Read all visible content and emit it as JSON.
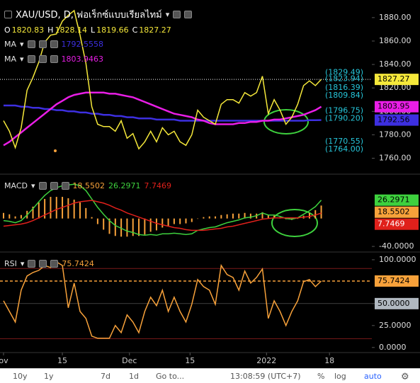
{
  "x_axis": {
    "xlim": [
      -0.6,
      62.6
    ],
    "xticks": [
      {
        "value": 0,
        "label": "ov"
      },
      {
        "value": 10,
        "label": "15"
      },
      {
        "value": 21.4,
        "label": "Dec"
      },
      {
        "value": 31.7,
        "label": "15"
      },
      {
        "value": 44.7,
        "label": "2022"
      },
      {
        "value": 55.4,
        "label": "18"
      }
    ]
  },
  "chart_data": [
    {
      "type": "line",
      "title": "XAU/USD, D, ฟอเร็กซ์แบบเรียลไทม์",
      "ohlc": [
        {
          "label": "O",
          "value": 1820.83
        },
        {
          "label": "H",
          "value": 1828.14
        },
        {
          "label": "L",
          "value": 1819.66
        },
        {
          "label": "C",
          "value": 1827.27
        }
      ],
      "ylim": [
        1747,
        1892
      ],
      "yticks": [
        {
          "value": 1760,
          "label": "1760.00"
        },
        {
          "value": 1780,
          "label": "1780.00"
        },
        {
          "value": 1800,
          "label": "1800.00"
        },
        {
          "value": 1820,
          "label": "1820.00"
        },
        {
          "value": 1840,
          "label": "1840.00"
        },
        {
          "value": 1860,
          "label": "1860.00"
        },
        {
          "value": 1880,
          "label": "1880.00"
        }
      ],
      "levels": [
        {
          "value": 1829.49,
          "label": "(1829.49)"
        },
        {
          "value": 1823.94,
          "label": "(1823.94)"
        },
        {
          "value": 1816.39,
          "label": "(1816.39)"
        },
        {
          "value": 1809.84,
          "label": "(1809.84)"
        },
        {
          "value": 1796.75,
          "label": "(1796.75)"
        },
        {
          "value": 1790.2,
          "label": "(1790.20)"
        },
        {
          "value": 1770.55,
          "label": "(1770.55)"
        },
        {
          "value": 1764.0,
          "label": "(1764.00)"
        }
      ],
      "level_color": "#26c6da",
      "series": [
        {
          "name": "MA",
          "color": "#3d2fe0",
          "last_label": "1792.56",
          "values": [
            1805,
            1805,
            1805,
            1804,
            1804,
            1803,
            1803,
            1802,
            1802,
            1801,
            1801,
            1800,
            1800,
            1799,
            1799,
            1798,
            1798,
            1797,
            1797,
            1796,
            1796,
            1795,
            1795,
            1794,
            1794,
            1794,
            1793,
            1793,
            1793,
            1793,
            1792,
            1792,
            1792,
            1792,
            1792,
            1792,
            1792,
            1792,
            1792,
            1792,
            1792,
            1792,
            1792,
            1792,
            1792,
            1792,
            1792,
            1792,
            1792,
            1792,
            1792,
            1792,
            1792.5,
            1792.5,
            1792.5558
          ]
        },
        {
          "name": "MA",
          "color": "#e91ee6",
          "last_label": "1803.95",
          "values": [
            1771,
            1774,
            1778,
            1782,
            1786,
            1790,
            1794,
            1798,
            1802,
            1806,
            1809,
            1812,
            1814,
            1815,
            1816,
            1816,
            1816,
            1816,
            1815,
            1815,
            1814,
            1813,
            1812,
            1810,
            1808,
            1806,
            1804,
            1802,
            1800,
            1798,
            1797,
            1796,
            1795,
            1793,
            1792,
            1790,
            1789,
            1789,
            1789,
            1789,
            1790,
            1790,
            1791,
            1791,
            1792,
            1792,
            1793,
            1793,
            1794,
            1795,
            1796,
            1797,
            1799,
            1801,
            1803.9463
          ]
        },
        {
          "color": "#f5e83a",
          "last_line": "dotted",
          "values": [
            1792,
            1783,
            1769,
            1786,
            1818,
            1829,
            1842,
            1859,
            1865,
            1866,
            1877,
            1882,
            1886,
            1865,
            1841,
            1804,
            1789,
            1787,
            1787,
            1783,
            1792,
            1777,
            1781,
            1768,
            1774,
            1783,
            1774,
            1786,
            1780,
            1783,
            1774,
            1771,
            1780,
            1801,
            1795,
            1792,
            1789,
            1806,
            1810,
            1810,
            1807,
            1816,
            1813,
            1816,
            1830,
            1798,
            1810,
            1801,
            1789,
            1795,
            1806,
            1822,
            1826,
            1822,
            1827.27
          ]
        }
      ]
    },
    {
      "type": "macd",
      "title": "MACD",
      "ylim": [
        -47,
        62.5
      ],
      "yticks": [
        {
          "value": -40,
          "label": "-40.0000"
        }
      ],
      "series": [
        {
          "color": "#f7a13a",
          "style": "histogram",
          "values": [
            8,
            6,
            3,
            5,
            11,
            17,
            23,
            28,
            31,
            31,
            31,
            29,
            27,
            23,
            15,
            2,
            -8,
            -16,
            -22,
            -25,
            -26,
            -26,
            -25,
            -25,
            -23,
            -19,
            -17,
            -13,
            -11,
            -8,
            -8,
            -7,
            -5,
            0,
            2,
            3,
            3,
            5,
            6,
            7,
            7,
            8,
            7,
            7,
            9,
            5,
            4,
            2,
            -1,
            -2,
            0,
            4,
            8,
            12,
            18.5502
          ]
        },
        {
          "color": "#3ed13e",
          "values": [
            -3,
            -4,
            -6,
            -3,
            5,
            14,
            24,
            33,
            40,
            44,
            47,
            48,
            49,
            47,
            40,
            28,
            16,
            6,
            -3,
            -10,
            -14,
            -18,
            -20,
            -23,
            -24,
            -23,
            -24,
            -22,
            -22,
            -21,
            -22,
            -23,
            -22,
            -17,
            -15,
            -13,
            -12,
            -9,
            -6,
            -4,
            -2,
            1,
            2,
            4,
            8,
            5,
            5,
            3,
            0,
            -1,
            1,
            6,
            11,
            17,
            26.2971
          ]
        },
        {
          "color": "#e0201b",
          "values": [
            -11,
            -10,
            -9,
            -8,
            -6,
            -3,
            1,
            5,
            9,
            13,
            16,
            19,
            22,
            24,
            25,
            26,
            24,
            22,
            19,
            15,
            12,
            8,
            5,
            2,
            -1,
            -4,
            -7,
            -9,
            -11,
            -13,
            -14,
            -16,
            -17,
            -17,
            -17,
            -16,
            -15,
            -14,
            -12,
            -11,
            -9,
            -7,
            -5,
            -3,
            -1,
            0,
            1,
            1,
            1,
            1,
            1,
            2,
            3,
            5,
            7.7469
          ]
        }
      ]
    },
    {
      "type": "line",
      "title": "RSI",
      "ylim": [
        -5,
        108
      ],
      "yticks": [
        {
          "value": 0,
          "label": "0.0000"
        },
        {
          "value": 25,
          "label": "25.0000"
        },
        {
          "value": 50,
          "label": "50.0000"
        },
        {
          "value": 100,
          "label": "100.0000"
        }
      ],
      "midline": 50,
      "bands": [
        90,
        10
      ],
      "series": [
        {
          "color": "#f7a13a",
          "last_line": "dashed",
          "values": [
            53.2,
            41.1,
            29.0,
            65.3,
            81.5,
            85.5,
            87.9,
            93.5,
            91.1,
            97.6,
            93.5,
            45.2,
            73.4,
            41.1,
            33.1,
            12.9,
            10.5,
            10.5,
            10.5,
            25.0,
            16.9,
            37.1,
            29.0,
            16.9,
            41.1,
            57.3,
            47.6,
            65.3,
            41.1,
            57.3,
            41.1,
            29.0,
            49.2,
            77.4,
            69.4,
            65.3,
            49.2,
            93.5,
            83.1,
            79.8,
            65.3,
            87.1,
            73.4,
            79.8,
            89.5,
            33.1,
            53.2,
            41.1,
            25.0,
            41.1,
            53.2,
            75.0,
            77.4,
            69.4,
            75.7424
          ]
        }
      ]
    }
  ],
  "toolbar": [
    "10y",
    "1y",
    "7d",
    "1d",
    "Go to...",
    "13:08:59 (UTC+7)",
    "%",
    "log",
    "auto"
  ]
}
